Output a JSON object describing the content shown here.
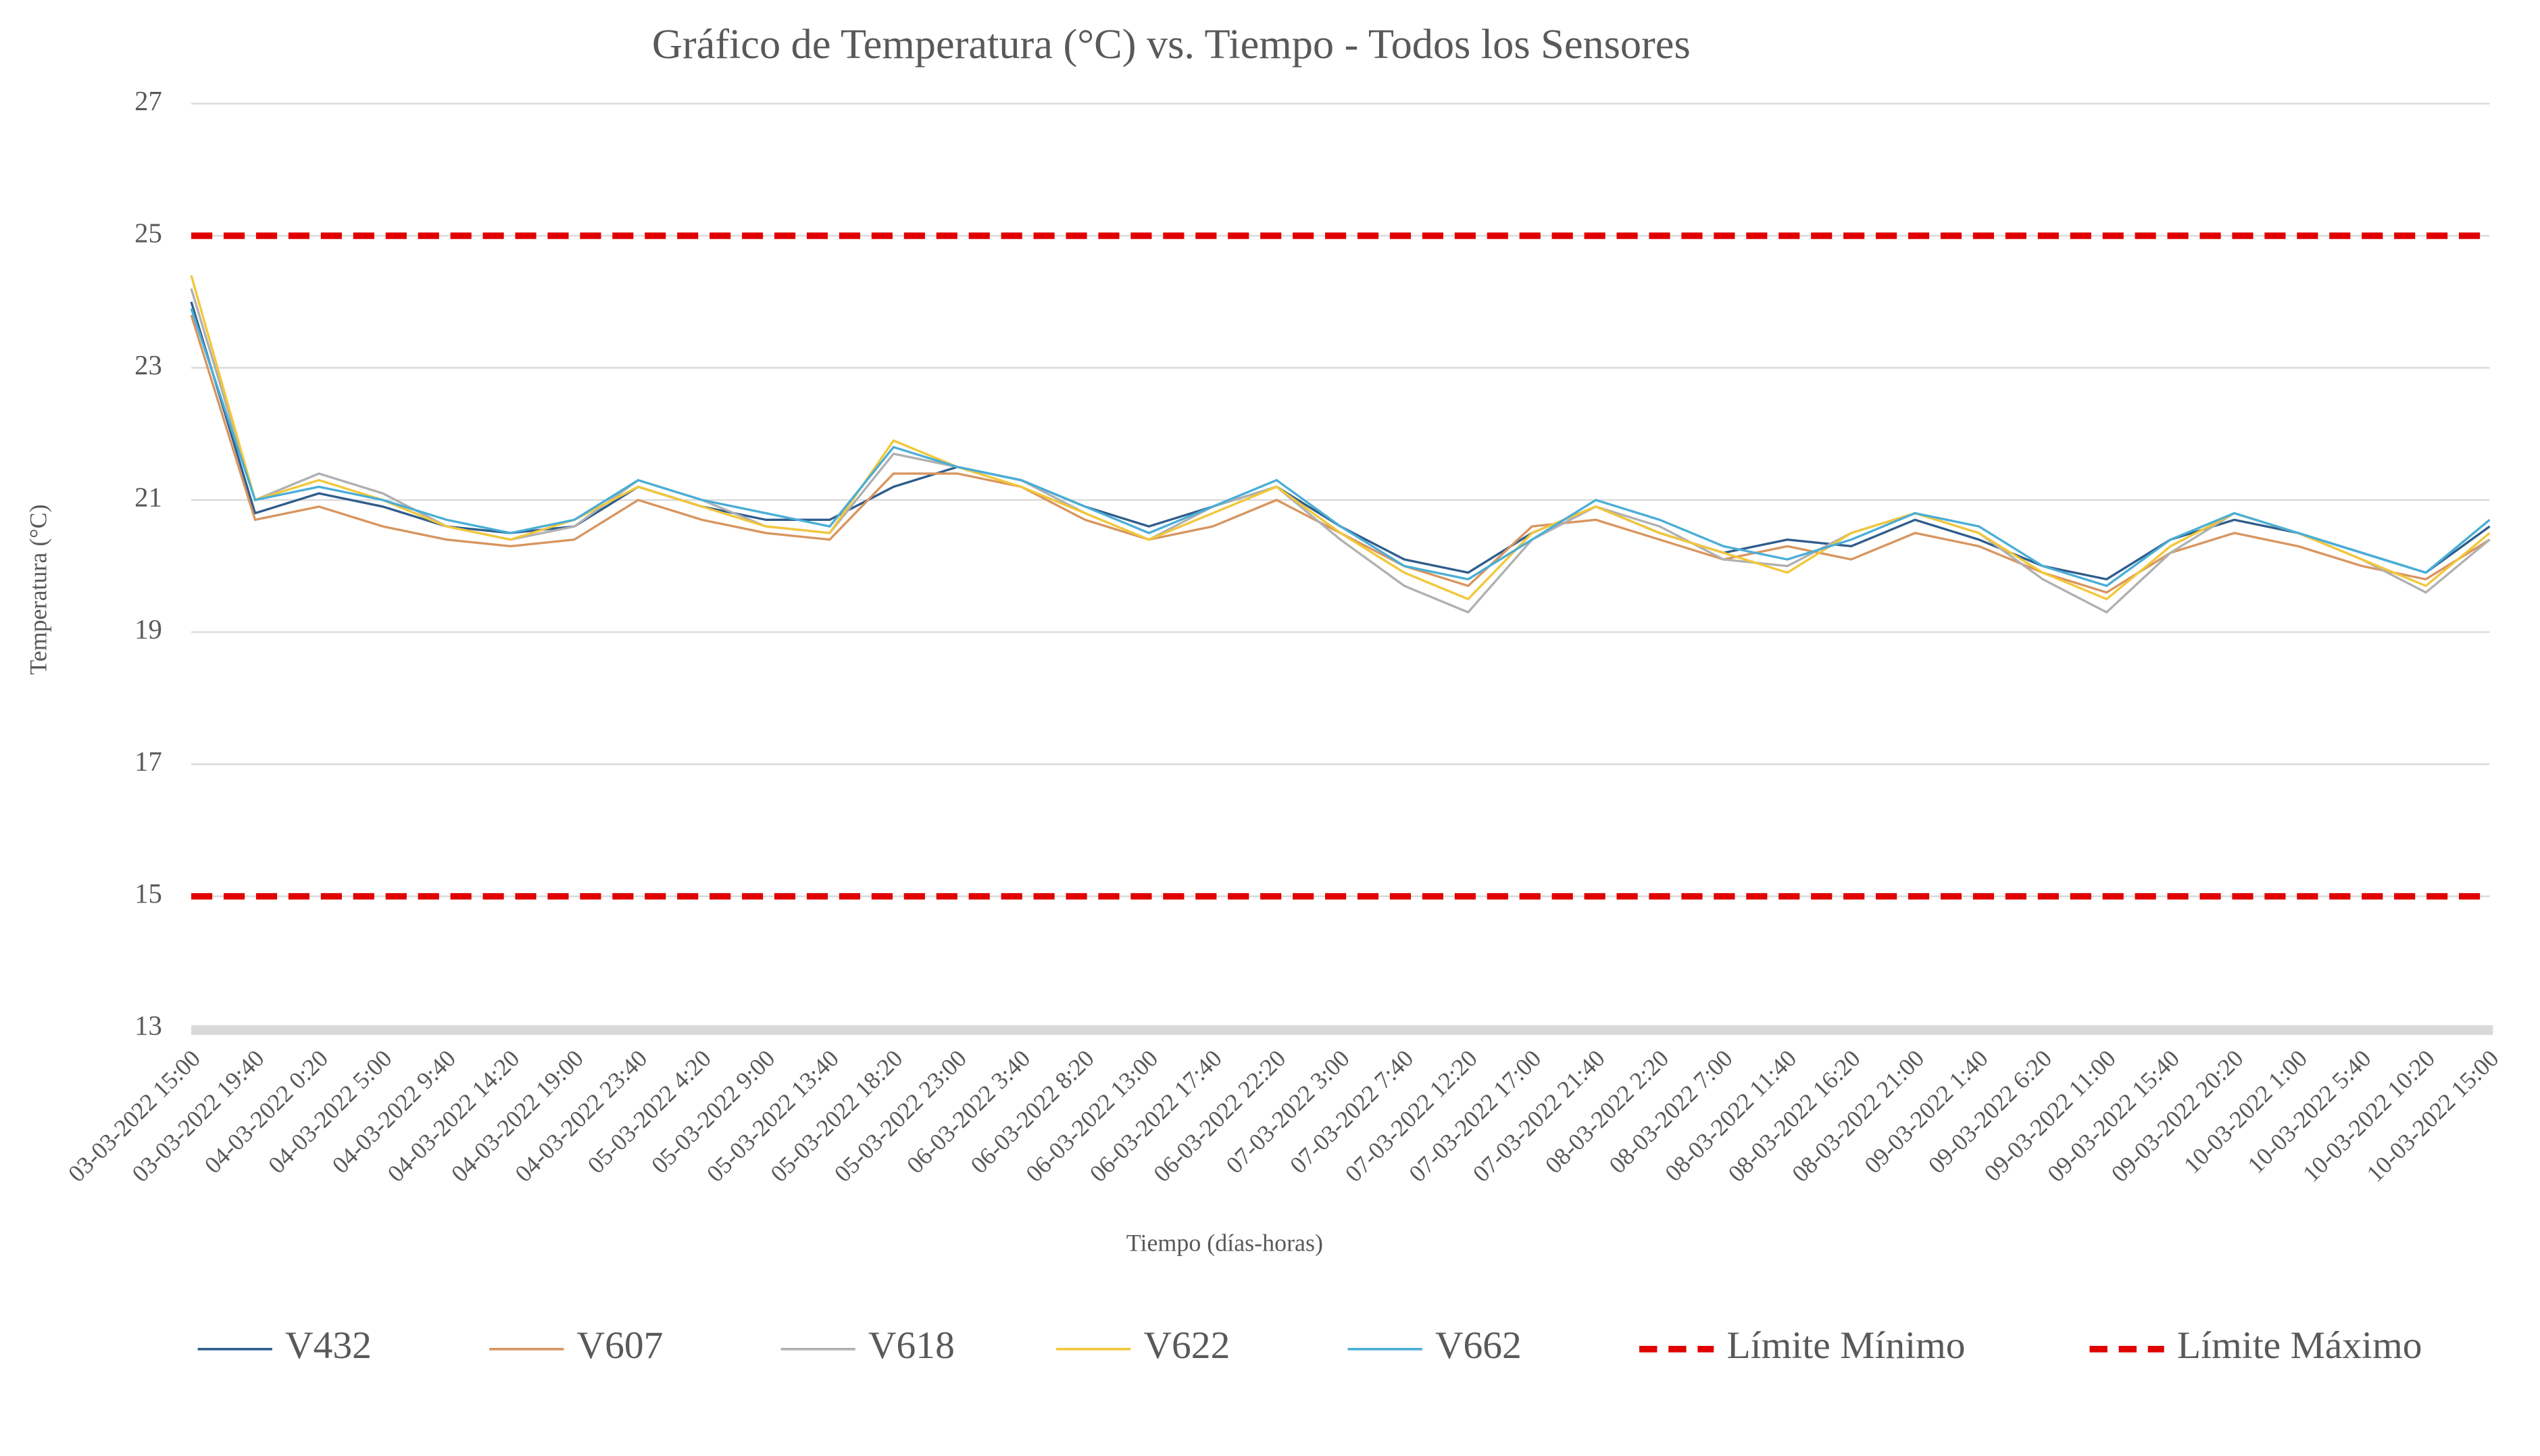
{
  "chart_data": {
    "type": "line",
    "title": "Gráfico de Temperatura (°C) vs. Tiempo - Todos los Sensores",
    "x_label": "Tiempo (días-horas)",
    "y_label": "Temperatura (°C)",
    "categories": [
      "03-03-2022 15:00",
      "03-03-2022 19:40",
      "04-03-2022 0:20",
      "04-03-2022 5:00",
      "04-03-2022 9:40",
      "04-03-2022 14:20",
      "04-03-2022 19:00",
      "04-03-2022 23:40",
      "05-03-2022 4:20",
      "05-03-2022 9:00",
      "05-03-2022 13:40",
      "05-03-2022 18:20",
      "05-03-2022 23:00",
      "06-03-2022 3:40",
      "06-03-2022 8:20",
      "06-03-2022 13:00",
      "06-03-2022 17:40",
      "06-03-2022 22:20",
      "07-03-2022 3:00",
      "07-03-2022 7:40",
      "07-03-2022 12:20",
      "07-03-2022 17:00",
      "07-03-2022 21:40",
      "08-03-2022 2:20",
      "08-03-2022 7:00",
      "08-03-2022 11:40",
      "08-03-2022 16:20",
      "08-03-2022 21:00",
      "09-03-2022 1:40",
      "09-03-2022 6:20",
      "09-03-2022 11:00",
      "09-03-2022 15:40",
      "09-03-2022 20:20",
      "10-03-2022 1:00",
      "10-03-2022 5:40",
      "10-03-2022 10:20",
      "10-03-2022 15:00"
    ],
    "series": [
      {
        "name": "V432",
        "color": "#2f5d8c",
        "values": [
          24,
          20.8,
          21.1,
          20.9,
          20.6,
          20.5,
          20.6,
          21.2,
          20.9,
          20.7,
          20.7,
          21.2,
          21.5,
          21.3,
          20.9,
          20.6,
          20.9,
          21.2,
          20.6,
          20.1,
          19.9,
          20.5,
          20.9,
          20.5,
          20.2,
          20.4,
          20.3,
          20.7,
          20.4,
          20.0,
          19.8,
          20.4,
          20.7,
          20.5,
          20.2,
          19.9,
          20.6
        ]
      },
      {
        "name": "V607",
        "color": "#d8955f",
        "values": [
          23.8,
          20.7,
          20.9,
          20.6,
          20.4,
          20.3,
          20.4,
          21.0,
          20.7,
          20.5,
          20.4,
          21.4,
          21.4,
          21.2,
          20.7,
          20.4,
          20.6,
          21.0,
          20.5,
          20.0,
          19.7,
          20.6,
          20.7,
          20.4,
          20.1,
          20.3,
          20.1,
          20.5,
          20.3,
          19.9,
          19.6,
          20.2,
          20.5,
          20.3,
          20.0,
          19.8,
          20.4
        ]
      },
      {
        "name": "V618",
        "color": "#b0b0b0",
        "values": [
          24.2,
          21.0,
          21.4,
          21.1,
          20.6,
          20.4,
          20.6,
          21.3,
          21.0,
          20.6,
          20.5,
          21.7,
          21.5,
          21.3,
          20.8,
          20.4,
          20.9,
          21.2,
          20.4,
          19.7,
          19.3,
          20.4,
          20.9,
          20.6,
          20.1,
          20.0,
          20.5,
          20.8,
          20.5,
          19.8,
          19.3,
          20.2,
          20.8,
          20.5,
          20.1,
          19.6,
          20.4
        ]
      },
      {
        "name": "V622",
        "color": "#f2c73a",
        "values": [
          24.4,
          21.0,
          21.3,
          21.0,
          20.6,
          20.4,
          20.7,
          21.2,
          20.9,
          20.6,
          20.5,
          21.9,
          21.5,
          21.2,
          20.8,
          20.4,
          20.8,
          21.2,
          20.5,
          19.9,
          19.5,
          20.5,
          20.9,
          20.5,
          20.2,
          19.9,
          20.5,
          20.8,
          20.5,
          19.9,
          19.5,
          20.3,
          20.8,
          20.5,
          20.1,
          19.7,
          20.5
        ]
      },
      {
        "name": "V662",
        "color": "#4aaed6",
        "values": [
          23.9,
          21.0,
          21.2,
          21.0,
          20.7,
          20.5,
          20.7,
          21.3,
          21.0,
          20.8,
          20.6,
          21.8,
          21.5,
          21.3,
          20.9,
          20.5,
          20.9,
          21.3,
          20.6,
          20.0,
          19.8,
          20.4,
          21.0,
          20.7,
          20.3,
          20.1,
          20.4,
          20.8,
          20.6,
          20.0,
          19.7,
          20.4,
          20.8,
          20.5,
          20.2,
          19.9,
          20.7
        ]
      }
    ],
    "reference_lines": [
      {
        "name": "Límite Mínimo",
        "value": 15,
        "color": "#e00000"
      },
      {
        "name": "Límite Máximo",
        "value": 25,
        "color": "#e00000"
      }
    ],
    "ylim": [
      13,
      27
    ],
    "yticks": [
      13,
      15,
      17,
      19,
      21,
      23,
      25,
      27
    ],
    "grid": true
  }
}
